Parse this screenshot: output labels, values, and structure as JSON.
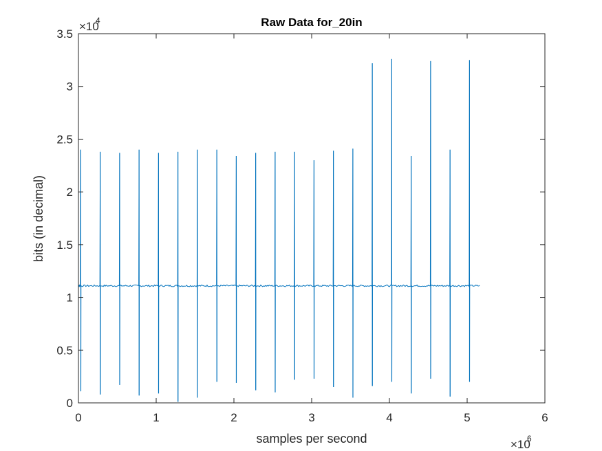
{
  "figure": {
    "background": "#ffffff"
  },
  "chart_data": {
    "type": "line",
    "title": "Raw Data for_20in",
    "xlabel": "samples per second",
    "ylabel": "bits (in decimal)",
    "xlim": [
      0,
      6000000
    ],
    "ylim": [
      0,
      35000
    ],
    "x_ticks": [
      0,
      1000000,
      2000000,
      3000000,
      4000000,
      5000000,
      6000000
    ],
    "x_tick_labels": [
      "0",
      "1",
      "2",
      "3",
      "4",
      "5",
      "6"
    ],
    "y_ticks": [
      0,
      5000,
      10000,
      15000,
      20000,
      25000,
      30000,
      35000
    ],
    "y_tick_labels": [
      "0",
      "0.5",
      "1",
      "1.5",
      "2",
      "2.5",
      "3",
      "3.5"
    ],
    "x_exponent_base": "×10",
    "x_exponent_power": "6",
    "y_exponent_base": "×10",
    "y_exponent_power": "4",
    "line_color": "#0072BD",
    "axis_color": "#262626",
    "grid": false,
    "box": true,
    "baseline": 11100,
    "x_end": 5160000,
    "series": [
      {
        "spikes": [
          {
            "x": 30000,
            "high": 24000,
            "low": 1100
          },
          {
            "x": 280000,
            "high": 23800,
            "low": 800
          },
          {
            "x": 530000,
            "high": 23700,
            "low": 1700
          },
          {
            "x": 780000,
            "high": 24000,
            "low": 700
          },
          {
            "x": 1030000,
            "high": 23700,
            "low": 900
          },
          {
            "x": 1280000,
            "high": 23800,
            "low": 100
          },
          {
            "x": 1530000,
            "high": 24000,
            "low": 500
          },
          {
            "x": 1780000,
            "high": 24000,
            "low": 2000
          },
          {
            "x": 2030000,
            "high": 23400,
            "low": 1900
          },
          {
            "x": 2280000,
            "high": 23700,
            "low": 1200
          },
          {
            "x": 2530000,
            "high": 23800,
            "low": 1000
          },
          {
            "x": 2780000,
            "high": 23800,
            "low": 2200
          },
          {
            "x": 3030000,
            "high": 23000,
            "low": 2300
          },
          {
            "x": 3280000,
            "high": 23900,
            "low": 1500
          },
          {
            "x": 3530000,
            "high": 24100,
            "low": 500
          },
          {
            "x": 3780000,
            "high": 32200,
            "low": 1600
          },
          {
            "x": 4030000,
            "high": 32600,
            "low": 2000
          },
          {
            "x": 4280000,
            "high": 23400,
            "low": 900
          },
          {
            "x": 4530000,
            "high": 32400,
            "low": 2300
          },
          {
            "x": 4780000,
            "high": 24000,
            "low": 600
          },
          {
            "x": 5030000,
            "high": 32500,
            "low": 2000
          }
        ]
      }
    ]
  }
}
